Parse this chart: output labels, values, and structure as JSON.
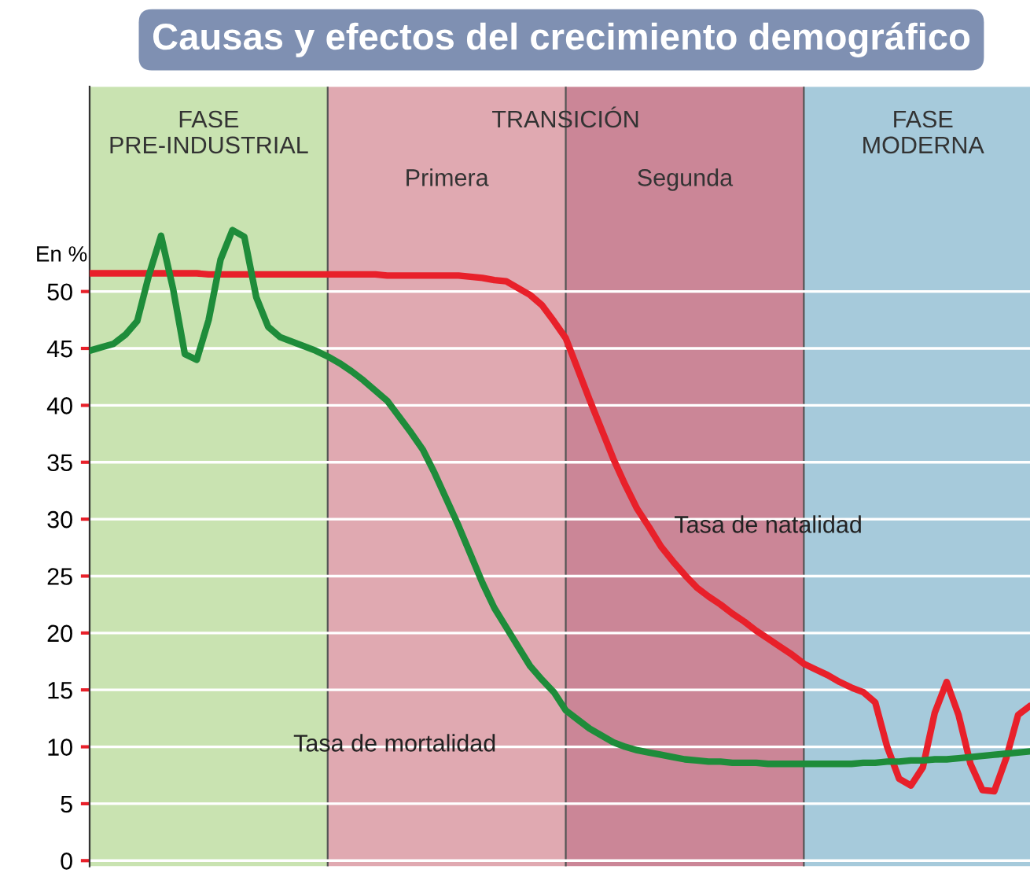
{
  "chart_data": {
    "type": "line",
    "title": "Causas y efectos del crecimiento demográfico",
    "ylabel": "En %",
    "categories": [
      null,
      null,
      null,
      null,
      null,
      null,
      null,
      null,
      null,
      null,
      null,
      null,
      null,
      null,
      null,
      null,
      null,
      null,
      null,
      null,
      null,
      null,
      null,
      null,
      null,
      null,
      null,
      null,
      null,
      null,
      null,
      null,
      null,
      null,
      null,
      null,
      null,
      null,
      null,
      null,
      null,
      null,
      null,
      null,
      null,
      null,
      null,
      null,
      null,
      null,
      null,
      null,
      null,
      null,
      null,
      null,
      null,
      null,
      null,
      null,
      null,
      null,
      null,
      null,
      null,
      null,
      null,
      null,
      null,
      null,
      null,
      null,
      null,
      null,
      null,
      null,
      null,
      null,
      null,
      null
    ],
    "ylim": [
      -0.5,
      68
    ],
    "yticks": [
      0,
      5,
      10,
      15,
      20,
      25,
      30,
      35,
      40,
      45,
      50
    ],
    "grid": true,
    "tick_labels": "y",
    "marker": "none",
    "line_style": "solid",
    "series": [
      {
        "name": "Tasa de natalidad",
        "color": "#e8202a",
        "values": [
          51.6,
          51.6,
          51.6,
          51.6,
          51.6,
          51.6,
          51.6,
          51.6,
          51.6,
          51.6,
          51.5,
          51.5,
          51.5,
          51.5,
          51.5,
          51.5,
          51.5,
          51.5,
          51.5,
          51.5,
          51.5,
          51.5,
          51.5,
          51.5,
          51.5,
          51.4,
          51.4,
          51.4,
          51.4,
          51.4,
          51.4,
          51.4,
          51.3,
          51.2,
          51.0,
          50.9,
          50.3,
          49.7,
          48.8,
          47.4,
          45.9,
          43.2,
          40.5,
          37.9,
          35.3,
          33.0,
          30.9,
          29.3,
          27.6,
          26.3,
          25.1,
          24.0,
          23.2,
          22.5,
          21.7,
          21.0,
          20.2,
          19.5,
          18.8,
          18.1,
          17.3,
          16.8,
          16.3,
          15.7,
          15.2,
          14.8,
          13.9,
          10.0,
          7.2,
          6.6,
          8.2,
          13.0,
          15.7,
          12.8,
          8.5,
          6.2,
          6.1,
          9.0,
          12.8,
          13.6
        ]
      },
      {
        "name": "Tasa de mortalidad",
        "color": "#1e8c3a",
        "values": [
          44.8,
          45.1,
          45.4,
          46.2,
          47.4,
          51.5,
          54.9,
          50.3,
          44.5,
          44.0,
          47.5,
          52.8,
          55.4,
          54.8,
          49.5,
          46.9,
          46.0,
          45.6,
          45.2,
          44.8,
          44.3,
          43.7,
          43.0,
          42.2,
          41.3,
          40.4,
          39.0,
          37.6,
          36.1,
          34.0,
          31.7,
          29.4,
          26.9,
          24.4,
          22.2,
          20.5,
          18.8,
          17.1,
          15.9,
          14.8,
          13.2,
          12.4,
          11.6,
          11.0,
          10.4,
          10.0,
          9.7,
          9.5,
          9.3,
          9.1,
          8.9,
          8.8,
          8.7,
          8.7,
          8.6,
          8.6,
          8.6,
          8.5,
          8.5,
          8.5,
          8.5,
          8.5,
          8.5,
          8.5,
          8.5,
          8.6,
          8.6,
          8.7,
          8.7,
          8.8,
          8.8,
          8.9,
          8.9,
          9.0,
          9.1,
          9.2,
          9.3,
          9.4,
          9.5,
          9.6
        ]
      }
    ],
    "annotations": [
      "FASE\nPRE-INDUSTRIAL",
      "TRANSICIÓN",
      "FASE\nMODERNA",
      "Primera",
      "Segunda"
    ]
  }
}
